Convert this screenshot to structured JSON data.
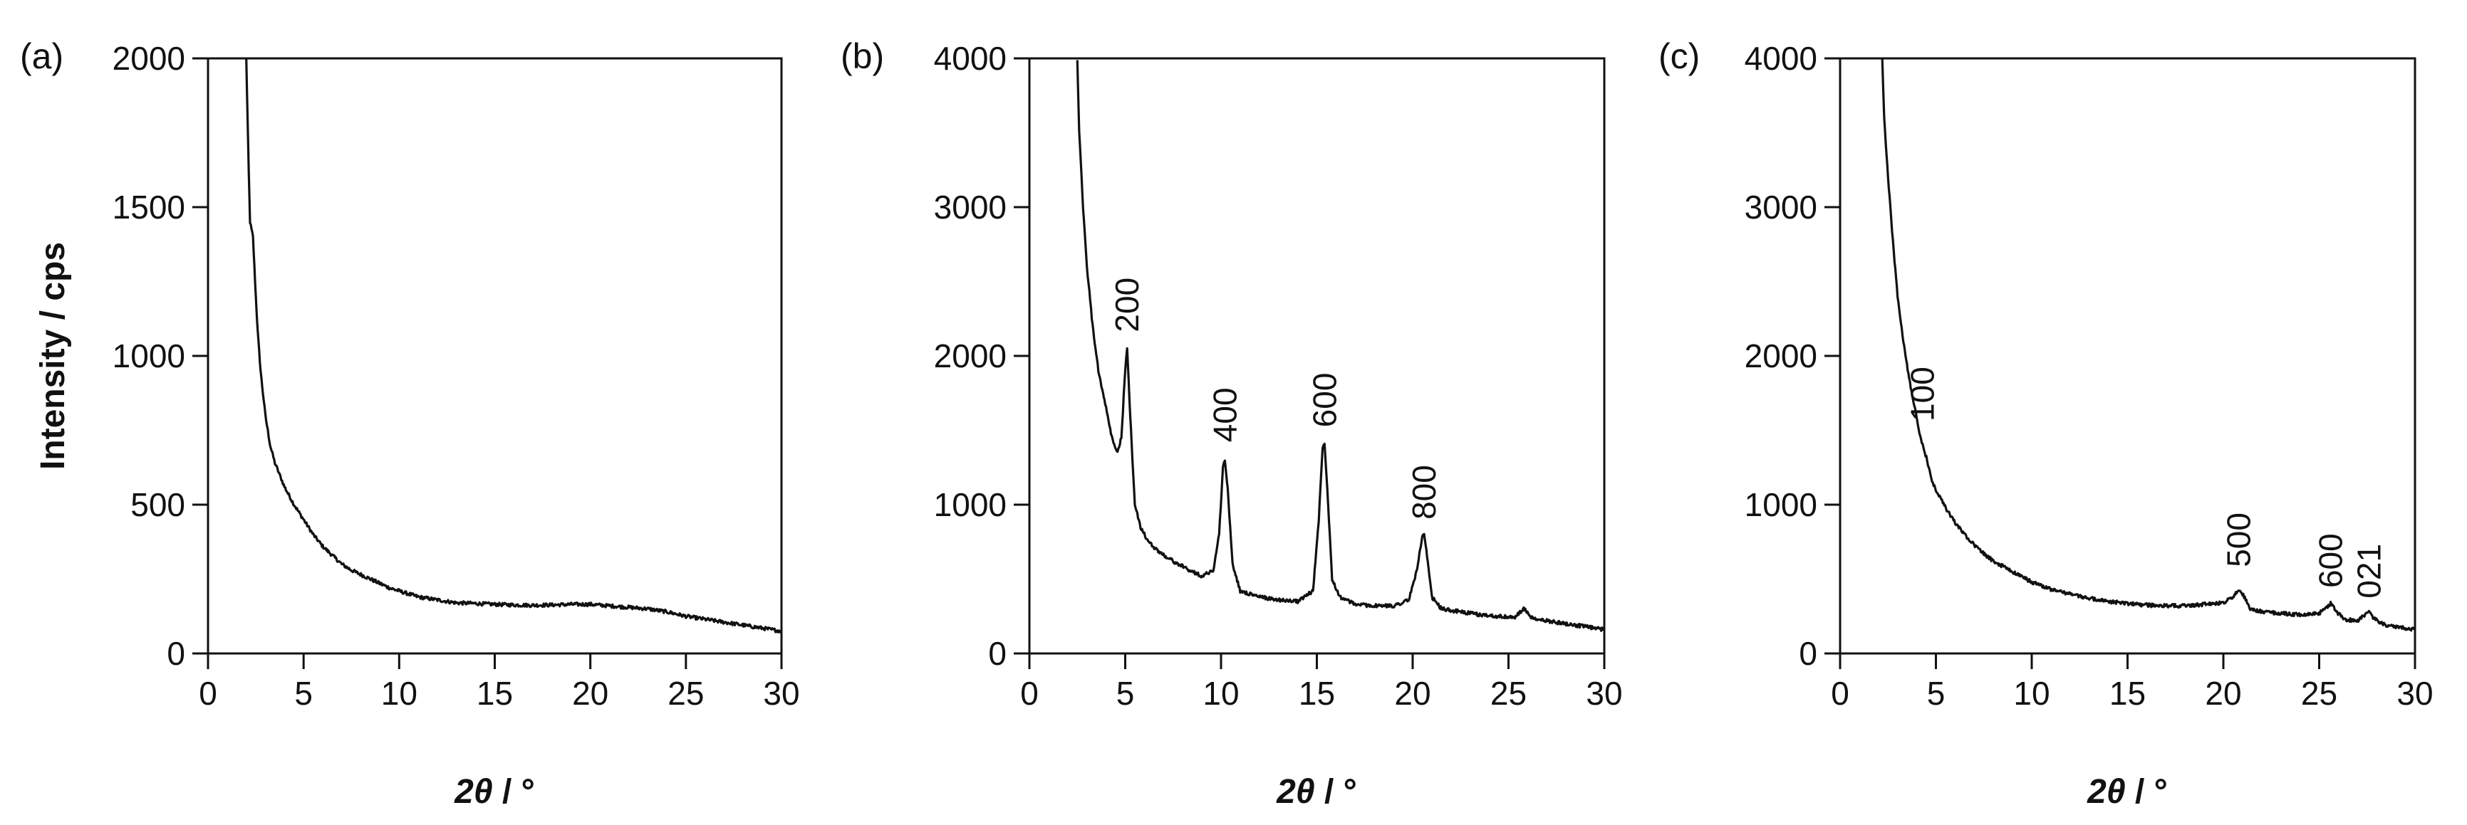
{
  "chart_data": [
    {
      "type": "line",
      "panel_label": "(a)",
      "xlabel": {
        "italic": "2θ",
        "rest": " / °"
      },
      "ylabel": "Intensity / cps",
      "xlim": [
        0,
        30
      ],
      "ylim": [
        0,
        2000
      ],
      "xticks": [
        0,
        5,
        10,
        15,
        20,
        25,
        30
      ],
      "yticks": [
        0,
        500,
        1000,
        1500,
        2000
      ],
      "annotations": [],
      "series": [
        {
          "x": [
            2.0,
            2.1,
            2.2,
            2.35,
            2.5,
            2.6,
            2.75,
            3.0,
            3.25,
            3.5,
            3.75,
            4.0,
            4.5,
            5.0,
            5.5,
            6.0,
            6.5,
            7.0,
            7.5,
            8.0,
            8.5,
            9.0,
            9.5,
            10.0,
            11.0,
            12.0,
            13.0,
            14.0,
            15.0,
            16.0,
            17.0,
            18.0,
            19.0,
            20.0,
            21.0,
            22.0,
            23.0,
            24.0,
            25.0,
            26.0,
            27.0,
            28.0,
            29.0,
            30.0
          ],
          "y": [
            2000,
            1700,
            1450,
            1400,
            1200,
            1080,
            950,
            800,
            700,
            640,
            600,
            560,
            500,
            450,
            400,
            360,
            330,
            300,
            280,
            265,
            250,
            235,
            220,
            210,
            190,
            180,
            170,
            168,
            165,
            163,
            162,
            163,
            165,
            165,
            160,
            155,
            150,
            140,
            125,
            115,
            105,
            95,
            85,
            75
          ]
        }
      ]
    },
    {
      "type": "line",
      "panel_label": "(b)",
      "xlabel": {
        "italic": "2θ",
        "rest": " / °"
      },
      "ylabel": "",
      "xlim": [
        0,
        30
      ],
      "ylim": [
        0,
        4000
      ],
      "xticks": [
        0,
        5,
        10,
        15,
        20,
        25,
        30
      ],
      "yticks": [
        0,
        1000,
        2000,
        3000,
        4000
      ],
      "annotations": [
        {
          "text": "200",
          "x": 5.1,
          "y": 2160
        },
        {
          "text": "400",
          "x": 10.2,
          "y": 1420
        },
        {
          "text": "600",
          "x": 15.4,
          "y": 1520
        },
        {
          "text": "800",
          "x": 20.6,
          "y": 900
        }
      ],
      "series": [
        {
          "x": [
            2.5,
            2.6,
            2.8,
            3.0,
            3.3,
            3.6,
            4.0,
            4.3,
            4.6,
            4.8,
            5.0,
            5.1,
            5.3,
            5.5,
            5.8,
            6.2,
            6.8,
            7.5,
            8.2,
            9.0,
            9.6,
            9.9,
            10.1,
            10.2,
            10.35,
            10.6,
            11.0,
            12.0,
            13.0,
            14.0,
            14.8,
            15.1,
            15.3,
            15.4,
            15.55,
            15.8,
            16.2,
            17.0,
            18.0,
            19.0,
            19.8,
            20.2,
            20.5,
            20.6,
            20.75,
            21.0,
            21.5,
            22.5,
            23.5,
            24.5,
            25.3,
            25.8,
            26.3,
            27.0,
            28.0,
            29.0,
            30.0
          ],
          "y": [
            4000,
            3500,
            3000,
            2600,
            2200,
            1900,
            1650,
            1450,
            1350,
            1450,
            1900,
            2050,
            1500,
            1000,
            850,
            750,
            680,
            620,
            570,
            520,
            560,
            800,
            1250,
            1300,
            1100,
            600,
            420,
            380,
            360,
            350,
            420,
            900,
            1380,
            1420,
            1100,
            500,
            380,
            330,
            320,
            320,
            360,
            550,
            780,
            800,
            650,
            380,
            300,
            280,
            260,
            250,
            240,
            300,
            230,
            220,
            200,
            180,
            160
          ]
        }
      ]
    },
    {
      "type": "line",
      "panel_label": "(c)",
      "xlabel": {
        "italic": "2θ",
        "rest": " / °"
      },
      "ylabel": "",
      "xlim": [
        0,
        30
      ],
      "ylim": [
        0,
        4000
      ],
      "xticks": [
        0,
        5,
        10,
        15,
        20,
        25,
        30
      ],
      "yticks": [
        0,
        1000,
        2000,
        3000,
        4000
      ],
      "annotations": [
        {
          "text": "100",
          "x": 4.3,
          "y": 1560
        },
        {
          "text": "500",
          "x": 20.8,
          "y": 580
        },
        {
          "text": "600",
          "x": 25.6,
          "y": 440
        },
        {
          "text": "021",
          "x": 27.6,
          "y": 370
        }
      ],
      "series": [
        {
          "x": [
            2.2,
            2.3,
            2.5,
            2.8,
            3.0,
            3.3,
            3.6,
            3.9,
            4.1,
            4.3,
            4.5,
            4.8,
            5.2,
            5.6,
            6.0,
            6.5,
            7.0,
            7.5,
            8.0,
            9.0,
            10.0,
            11.0,
            12.0,
            13.0,
            14.0,
            15.0,
            16.0,
            17.0,
            18.0,
            19.0,
            20.0,
            20.5,
            20.8,
            21.0,
            21.4,
            22.0,
            23.0,
            24.0,
            25.0,
            25.4,
            25.6,
            25.9,
            26.3,
            27.0,
            27.4,
            27.6,
            27.9,
            28.5,
            29.0,
            30.0
          ],
          "y": [
            4000,
            3600,
            3200,
            2700,
            2400,
            2100,
            1850,
            1650,
            1500,
            1400,
            1320,
            1150,
            1050,
            960,
            880,
            800,
            730,
            670,
            620,
            550,
            480,
            430,
            400,
            370,
            350,
            335,
            325,
            320,
            320,
            330,
            340,
            380,
            430,
            400,
            300,
            280,
            270,
            260,
            270,
            310,
            340,
            280,
            230,
            220,
            260,
            280,
            230,
            190,
            180,
            160
          ]
        }
      ]
    }
  ]
}
